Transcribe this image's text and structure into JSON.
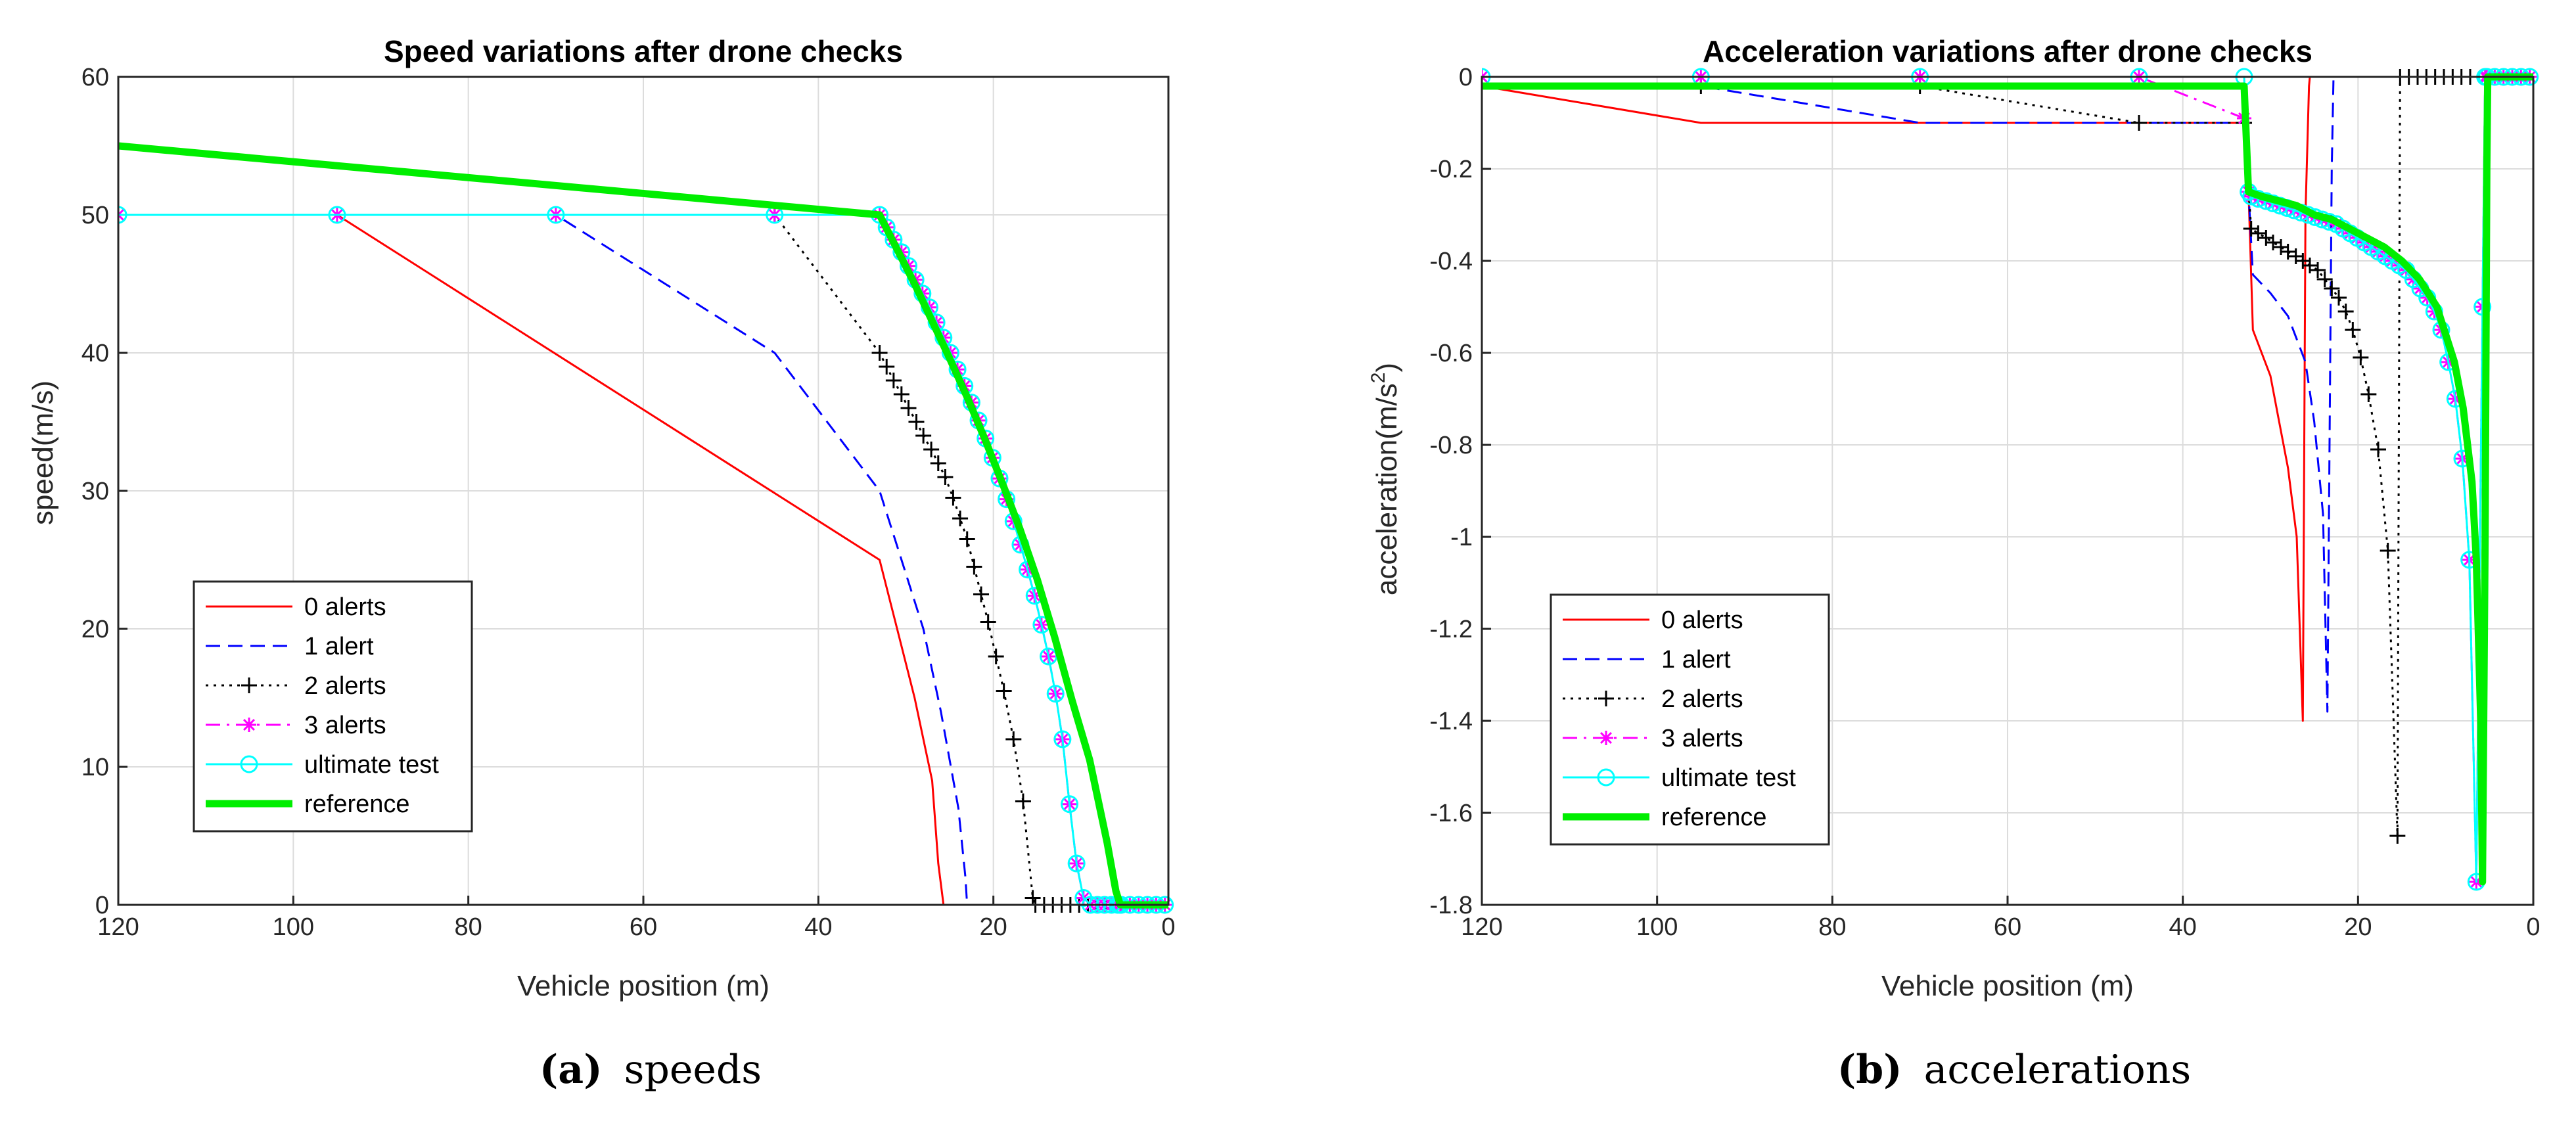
{
  "chart_data": [
    {
      "type": "line",
      "title": "Speed variations after drone checks",
      "xlabel": "Vehicle position (m)",
      "ylabel": "speed(m/s)",
      "xlim": [
        120,
        0
      ],
      "ylim": [
        0,
        60
      ],
      "xticks": [
        120,
        100,
        80,
        60,
        40,
        20,
        0
      ],
      "yticks": [
        0,
        10,
        20,
        30,
        40,
        50,
        60
      ],
      "ytick_labels": [
        "0",
        "10",
        "20",
        "30",
        "40",
        "50",
        "60"
      ],
      "grid": true,
      "legend_position": "bottom-left",
      "caption": {
        "label": "(a)",
        "text": "speeds"
      },
      "series": [
        {
          "name": "0 alerts",
          "color": "#ff0000",
          "dash": "solid",
          "marker": "none",
          "x": [
            120,
            95,
            33,
            31,
            29,
            27,
            26.3,
            25.7,
            25.6,
            0
          ],
          "y": [
            50,
            50,
            25,
            20,
            15,
            9,
            3,
            0,
            0,
            0
          ]
        },
        {
          "name": "1 alert",
          "color": "#0000ff",
          "dash": "dashed",
          "marker": "none",
          "x": [
            120,
            70,
            45,
            33,
            31,
            28,
            26,
            24,
            23.2,
            23,
            0
          ],
          "y": [
            50,
            50,
            40,
            30,
            26,
            20,
            14,
            7,
            2,
            0,
            0
          ]
        },
        {
          "name": "2 alerts",
          "color": "#000000",
          "dash": "dotted",
          "marker": "plus",
          "x": [
            120,
            45,
            33,
            32.2,
            31.4,
            30.5,
            29.7,
            28.8,
            28.0,
            27.1,
            26.3,
            25.5,
            24.6,
            23.8,
            23.0,
            22.2,
            21.4,
            20.6,
            19.7,
            18.8,
            17.7,
            16.6,
            15.5,
            15.2,
            14.2,
            13.2,
            12.2,
            11.2,
            10.2,
            9.2,
            8.2,
            7.2
          ],
          "y": [
            50,
            50,
            40,
            39,
            38,
            37,
            36,
            35,
            34,
            33,
            32,
            31,
            29.5,
            28,
            26.5,
            24.5,
            22.5,
            20.5,
            18,
            15.5,
            12,
            7.5,
            0.5,
            0,
            0,
            0,
            0,
            0,
            0,
            0,
            0,
            0
          ]
        },
        {
          "name": "3 alerts",
          "color": "#ff00ff",
          "dash": "dashdot",
          "marker": "star",
          "x": [
            120,
            95,
            70,
            45,
            33,
            32.2,
            31.4,
            30.5,
            29.7,
            28.9,
            28.1,
            27.3,
            26.5,
            25.7,
            24.9,
            24.1,
            23.3,
            22.5,
            21.7,
            20.9,
            20.1,
            19.3,
            18.5,
            17.7,
            16.9,
            16.1,
            15.3,
            14.5,
            13.7,
            12.9,
            12.1,
            11.3,
            10.5,
            9.7,
            8.9,
            8.1,
            7.3,
            6.5,
            5.8,
            5.5,
            5.4,
            4.4,
            3.4,
            2.4,
            1.4,
            0.4
          ],
          "y": [
            50,
            50,
            50,
            50,
            50,
            49.1,
            48.2,
            47.3,
            46.3,
            45.3,
            44.3,
            43.3,
            42.2,
            41.1,
            40,
            38.8,
            37.6,
            36.4,
            35.1,
            33.8,
            32.4,
            30.9,
            29.4,
            27.8,
            26.1,
            24.3,
            22.4,
            20.3,
            18,
            15.3,
            12,
            7.3,
            3,
            0.5,
            0,
            0,
            0,
            0,
            0,
            0,
            0,
            0,
            0,
            0,
            0,
            0
          ]
        },
        {
          "name": "ultimate test",
          "color": "#00ffff",
          "dash": "solid",
          "marker": "circle",
          "x": [
            120,
            95,
            70,
            45,
            33,
            32.2,
            31.4,
            30.5,
            29.7,
            28.9,
            28.1,
            27.3,
            26.5,
            25.7,
            24.9,
            24.1,
            23.3,
            22.5,
            21.7,
            20.9,
            20.1,
            19.3,
            18.5,
            17.7,
            16.9,
            16.1,
            15.3,
            14.5,
            13.7,
            12.9,
            12.1,
            11.3,
            10.5,
            9.7,
            8.9,
            8.1,
            7.3,
            6.5,
            5.8,
            5.5,
            5.4,
            4.4,
            3.4,
            2.4,
            1.4,
            0.4
          ],
          "y": [
            50,
            50,
            50,
            50,
            50,
            49.1,
            48.2,
            47.3,
            46.3,
            45.3,
            44.3,
            43.3,
            42.2,
            41.1,
            40,
            38.8,
            37.6,
            36.4,
            35.1,
            33.8,
            32.4,
            30.9,
            29.4,
            27.8,
            26.1,
            24.3,
            22.4,
            20.3,
            18,
            15.3,
            12,
            7.3,
            3,
            0.5,
            0,
            0,
            0,
            0,
            0,
            0,
            0,
            0,
            0,
            0,
            0,
            0
          ]
        },
        {
          "name": "reference",
          "color": "#00ee00",
          "dash": "solid",
          "marker": "none",
          "thick": true,
          "x": [
            120,
            33,
            31,
            29,
            27,
            25,
            23,
            21,
            19,
            17,
            15,
            13,
            11,
            9,
            7,
            6,
            5.5,
            5.4,
            0
          ],
          "y": [
            55,
            50,
            47.5,
            45,
            42.3,
            39.6,
            36.8,
            33.8,
            30.6,
            27.3,
            23.6,
            19.4,
            14.8,
            10.5,
            4.5,
            1,
            0,
            0,
            0
          ]
        }
      ]
    },
    {
      "type": "line",
      "title": "Acceleration variations after drone checks",
      "xlabel": "Vehicle position (m)",
      "ylabel": "acceleration(m/s2)",
      "ylabel_main": "acceleration(m/s",
      "ylabel_sup": "2",
      "ylabel_tail": ")",
      "xlim": [
        120,
        0
      ],
      "ylim": [
        -1.8,
        0
      ],
      "xticks": [
        120,
        100,
        80,
        60,
        40,
        20,
        0
      ],
      "yticks": [
        -1.8,
        -1.6,
        -1.4,
        -1.2,
        -1,
        -0.8,
        -0.6,
        -0.4,
        -0.2,
        0
      ],
      "ytick_labels": [
        "-1.8",
        "-1.6",
        "-1.4",
        "-1.2",
        "-1",
        "-0.8",
        "-0.6",
        "-0.4",
        "-0.2",
        "0"
      ],
      "grid": true,
      "legend_position": "bottom-left",
      "caption": {
        "label": "(b)",
        "text": "accelerations"
      },
      "series": [
        {
          "name": "0 alerts",
          "color": "#ff0000",
          "dash": "solid",
          "marker": "none",
          "x": [
            120,
            95,
            33,
            32.5,
            32,
            30,
            29,
            28,
            27,
            26.3,
            26,
            25.6,
            25.5,
            0
          ],
          "y": [
            -0.02,
            -0.1,
            -0.1,
            -0.25,
            -0.55,
            -0.65,
            -0.75,
            -0.85,
            -1.0,
            -1.4,
            -0.3,
            -0.02,
            0,
            0
          ]
        },
        {
          "name": "1 alert",
          "color": "#0000ff",
          "dash": "dashed",
          "marker": "none",
          "x": [
            120,
            95,
            70,
            45,
            33,
            32.5,
            32,
            30,
            28,
            26,
            25,
            24,
            23.5,
            23,
            22.8,
            0
          ],
          "y": [
            -0.02,
            -0.02,
            -0.1,
            -0.1,
            -0.1,
            -0.25,
            -0.43,
            -0.47,
            -0.52,
            -0.62,
            -0.75,
            -0.95,
            -1.38,
            -0.2,
            0,
            0
          ]
        },
        {
          "name": "2 alerts",
          "color": "#000000",
          "dash": "dotted",
          "marker": "plus",
          "x": [
            120,
            95,
            70,
            45,
            33,
            32.2,
            31.4,
            30.5,
            29.7,
            28.8,
            28.0,
            27.1,
            26.3,
            25.5,
            24.6,
            23.8,
            23.0,
            22.2,
            21.4,
            20.6,
            19.7,
            18.8,
            17.7,
            16.6,
            15.5,
            15.2,
            14.2,
            13.2,
            12.2,
            11.2,
            10.2,
            9.2,
            8.2,
            7.2
          ],
          "y": [
            -0.02,
            -0.02,
            -0.02,
            -0.1,
            -0.1,
            -0.33,
            -0.34,
            -0.35,
            -0.36,
            -0.37,
            -0.38,
            -0.39,
            -0.4,
            -0.41,
            -0.42,
            -0.44,
            -0.46,
            -0.48,
            -0.51,
            -0.55,
            -0.61,
            -0.69,
            -0.81,
            -1.03,
            -1.65,
            0,
            0,
            0,
            0,
            0,
            0,
            0,
            0,
            0
          ]
        },
        {
          "name": "3 alerts",
          "color": "#ff00ff",
          "dash": "dashdot",
          "marker": "star",
          "x": [
            120,
            95,
            70,
            45,
            33,
            32.5,
            32.2,
            31.4,
            30.5,
            29.7,
            28.9,
            28.1,
            27.3,
            26.5,
            25.7,
            24.9,
            24.1,
            23.3,
            22.5,
            21.7,
            20.9,
            20.1,
            19.3,
            18.5,
            17.7,
            16.9,
            16.1,
            15.3,
            14.5,
            13.7,
            12.9,
            12.1,
            11.3,
            10.5,
            9.7,
            8.9,
            8.1,
            7.3,
            6.5,
            5.8,
            5.5,
            5.3,
            4.4,
            3.4,
            2.4,
            1.4,
            0.4
          ],
          "y": [
            0,
            0,
            0,
            0,
            -0.09,
            -0.25,
            -0.26,
            -0.265,
            -0.27,
            -0.275,
            -0.28,
            -0.285,
            -0.29,
            -0.295,
            -0.3,
            -0.305,
            -0.31,
            -0.315,
            -0.32,
            -0.33,
            -0.34,
            -0.35,
            -0.36,
            -0.37,
            -0.38,
            -0.39,
            -0.4,
            -0.41,
            -0.42,
            -0.44,
            -0.46,
            -0.48,
            -0.51,
            -0.55,
            -0.62,
            -0.7,
            -0.83,
            -1.05,
            -1.75,
            -0.5,
            0,
            0,
            0,
            0,
            0,
            0,
            0
          ]
        },
        {
          "name": "ultimate test",
          "color": "#00ffff",
          "dash": "solid",
          "marker": "circle",
          "x": [
            120,
            95,
            70,
            45,
            33,
            32.5,
            32.2,
            31.4,
            30.5,
            29.7,
            28.9,
            28.1,
            27.3,
            26.5,
            25.7,
            24.9,
            24.1,
            23.3,
            22.5,
            21.7,
            20.9,
            20.1,
            19.3,
            18.5,
            17.7,
            16.9,
            16.1,
            15.3,
            14.5,
            13.7,
            12.9,
            12.1,
            11.3,
            10.5,
            9.7,
            8.9,
            8.1,
            7.3,
            6.5,
            5.8,
            5.5,
            5.3,
            4.4,
            3.4,
            2.4,
            1.4,
            0.4
          ],
          "y": [
            0,
            0,
            0,
            0,
            0,
            -0.25,
            -0.26,
            -0.265,
            -0.27,
            -0.275,
            -0.28,
            -0.285,
            -0.29,
            -0.295,
            -0.3,
            -0.305,
            -0.31,
            -0.315,
            -0.32,
            -0.33,
            -0.34,
            -0.35,
            -0.36,
            -0.37,
            -0.38,
            -0.39,
            -0.4,
            -0.41,
            -0.42,
            -0.44,
            -0.46,
            -0.48,
            -0.51,
            -0.55,
            -0.62,
            -0.7,
            -0.83,
            -1.05,
            -1.75,
            -0.5,
            0,
            0,
            0,
            0,
            0,
            0,
            0
          ]
        },
        {
          "name": "reference",
          "color": "#00ee00",
          "dash": "solid",
          "marker": "none",
          "thick": true,
          "x": [
            120,
            33,
            32.5,
            31,
            29,
            27,
            25,
            23,
            21,
            19,
            17,
            15,
            13,
            11,
            9,
            8,
            7,
            6.5,
            6,
            5.8,
            5.5,
            5.3,
            5.2,
            0
          ],
          "y": [
            -0.02,
            -0.02,
            -0.25,
            -0.26,
            -0.27,
            -0.28,
            -0.3,
            -0.31,
            -0.33,
            -0.35,
            -0.37,
            -0.4,
            -0.44,
            -0.5,
            -0.62,
            -0.72,
            -0.88,
            -1.05,
            -1.4,
            -1.75,
            -1.0,
            -0.2,
            0,
            0
          ]
        }
      ]
    }
  ]
}
